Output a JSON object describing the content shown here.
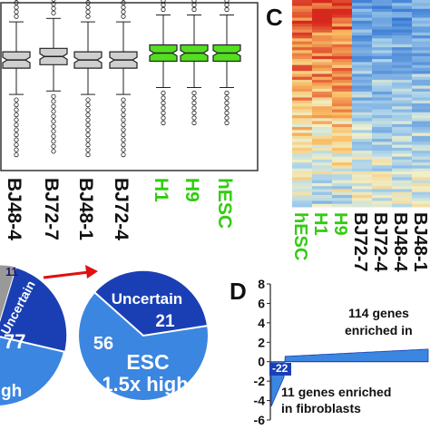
{
  "panels": {
    "c_label": "C",
    "d_label": "D"
  },
  "boxplot": {
    "samples": [
      {
        "name": "BJ48-4",
        "color": "#cfcfcf",
        "group": "fibroblast",
        "median": 0.62
      },
      {
        "name": "BJ72-7",
        "color": "#cfcfcf",
        "group": "fibroblast",
        "median": 0.66
      },
      {
        "name": "BJ48-1",
        "color": "#cfcfcf",
        "group": "fibroblast",
        "median": 0.62
      },
      {
        "name": "BJ72-4",
        "color": "#cfcfcf",
        "group": "fibroblast",
        "median": 0.62
      },
      {
        "name": "H1",
        "color": "#55dd22",
        "group": "esc",
        "median": 0.7
      },
      {
        "name": "H9",
        "color": "#55dd22",
        "group": "esc",
        "median": 0.7
      },
      {
        "name": "hESC",
        "color": "#55dd22",
        "group": "esc",
        "median": 0.7
      }
    ]
  },
  "heatmap": {
    "columns": [
      {
        "name": "hESC",
        "color": "#33cc11"
      },
      {
        "name": "H1",
        "color": "#33cc11"
      },
      {
        "name": "H9",
        "color": "#33cc11"
      },
      {
        "name": "BJ72-7",
        "color": "#111111"
      },
      {
        "name": "BJ72-4",
        "color": "#111111"
      },
      {
        "name": "BJ48-4",
        "color": "#111111"
      },
      {
        "name": "BJ48-1",
        "color": "#111111"
      }
    ]
  },
  "pies": {
    "left": {
      "top_value": "11",
      "labels": [
        "Uncertain",
        "77",
        "gh"
      ]
    },
    "right": {
      "uncertain_label": "Uncertain",
      "uncertain_value": "21",
      "esc_value": "56",
      "esc_label": "ESC",
      "esc_sub": "1.5x high"
    }
  },
  "chart_data": {
    "type": "area",
    "title": "",
    "yticks": [
      8,
      6,
      4,
      2,
      0,
      -2,
      -4,
      -6
    ],
    "ylim": [
      -6,
      8
    ],
    "annotations": [
      {
        "line1": "114 genes",
        "line2": "enriched in"
      },
      {
        "line1": "11 genes enriched",
        "line2": "in fibroblasts"
      }
    ],
    "neg_badge": "-22",
    "series": [
      {
        "values_summary": "sorted log-fold change, 11 negative genes down to about -4.5, then about 114 positive genes rising to about 1.2"
      }
    ]
  }
}
